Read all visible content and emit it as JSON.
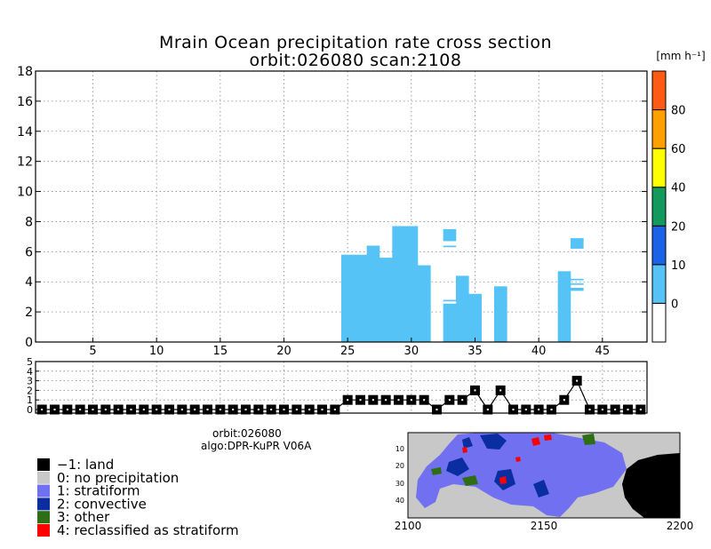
{
  "title": {
    "line1": "Mrain Ocean precipitation rate cross section",
    "line2": "orbit:026080     scan:2108"
  },
  "colorbar": {
    "unit_label": "[mm h⁻¹]",
    "segments": [
      {
        "color": "#ffffff",
        "from": -10,
        "to": 0
      },
      {
        "color": "#56c3f7",
        "from": 0,
        "to": 10
      },
      {
        "color": "#1a62e8",
        "from": 10,
        "to": 20
      },
      {
        "color": "#129a5c",
        "from": 20,
        "to": 40
      },
      {
        "color": "#ffff00",
        "from": 40,
        "to": 60
      },
      {
        "color": "#ffa000",
        "from": 60,
        "to": 80
      },
      {
        "color": "#ff5a14",
        "from": 80,
        "to": 100
      }
    ],
    "labels": [
      "0",
      "10",
      "20",
      "40",
      "60",
      "80"
    ]
  },
  "chart_data": [
    {
      "type": "bar",
      "name": "precipitation-cross-section",
      "title": "Mrain Ocean precipitation rate cross section",
      "xlabel": "",
      "ylabel": "",
      "xlim": [
        0.5,
        48.5
      ],
      "ylim": [
        0,
        18
      ],
      "xticks": [
        5,
        10,
        15,
        20,
        25,
        30,
        35,
        40,
        45
      ],
      "yticks": [
        0,
        2,
        4,
        6,
        8,
        10,
        12,
        14,
        16,
        18
      ],
      "grid": true,
      "bar_color": "#56c3f7",
      "columns": [
        {
          "x": 25,
          "top": 5.8
        },
        {
          "x": 26,
          "top": 5.8
        },
        {
          "x": 27,
          "top": 6.4
        },
        {
          "x": 28,
          "top": 5.6
        },
        {
          "x": 29,
          "top": 7.7
        },
        {
          "x": 30,
          "top": 7.7
        },
        {
          "x": 31,
          "top": 5.1
        },
        {
          "x": 33,
          "top": 2.8
        },
        {
          "x": 34,
          "top": 4.4
        },
        {
          "x": 35,
          "top": 3.2
        },
        {
          "x": 37,
          "top": 3.7
        },
        {
          "x": 42,
          "top": 4.7
        }
      ],
      "floating": [
        {
          "x": 33,
          "bottom": 6.7,
          "top": 7.5
        },
        {
          "x": 33,
          "bottom": 6.3,
          "top": 6.4
        },
        {
          "x": 43,
          "bottom": 6.2,
          "top": 6.9
        },
        {
          "x": 43,
          "bottom": 4.1,
          "top": 4.2
        },
        {
          "x": 43,
          "bottom": 3.8,
          "top": 3.9
        },
        {
          "x": 43,
          "bottom": 3.4,
          "top": 3.6
        }
      ],
      "gaps": [
        {
          "x": 33,
          "bottom": 2.55,
          "top": 2.7
        }
      ]
    },
    {
      "type": "line",
      "name": "rain-type-strip",
      "xlim": [
        0.5,
        48.5
      ],
      "ylim": [
        0,
        5
      ],
      "yticks": [
        0,
        1,
        2,
        3,
        4,
        5
      ],
      "grid": true,
      "x": [
        1,
        2,
        3,
        4,
        5,
        6,
        7,
        8,
        9,
        10,
        11,
        12,
        13,
        14,
        15,
        16,
        17,
        18,
        19,
        20,
        21,
        22,
        23,
        24,
        25,
        26,
        27,
        28,
        29,
        30,
        31,
        32,
        33,
        34,
        35,
        36,
        37,
        38,
        39,
        40,
        41,
        42,
        43,
        44,
        45,
        46,
        47,
        48
      ],
      "y": [
        0,
        0,
        0,
        0,
        0,
        0,
        0,
        0,
        0,
        0,
        0,
        0,
        0,
        0,
        0,
        0,
        0,
        0,
        0,
        0,
        0,
        0,
        0,
        0,
        1,
        1,
        1,
        1,
        1,
        1,
        1,
        0,
        1,
        1,
        2,
        0,
        2,
        0,
        0,
        0,
        0,
        1,
        3,
        0,
        0,
        0,
        0,
        0
      ]
    }
  ],
  "info": {
    "orbit": "orbit:026080",
    "algo": "algo:DPR-KuPR V06A"
  },
  "legend": [
    {
      "color": "#000000",
      "label": "−1: land"
    },
    {
      "color": "#c8c8c8",
      "label": "0: no precipitation"
    },
    {
      "color": "#7070f0",
      "label": "1: stratiform"
    },
    {
      "color": "#0a2ea0",
      "label": "2: convective"
    },
    {
      "color": "#2e6e14",
      "label": "3: other"
    },
    {
      "color": "#ff0000",
      "label": "4: reclassified as stratiform"
    }
  ],
  "map": {
    "yticks": [
      "10",
      "20",
      "30",
      "40"
    ],
    "xticks": [
      "2100",
      "2150",
      "2200"
    ],
    "colors": {
      "background": "#c8c8c8",
      "stratiform": "#7070f0",
      "convective": "#0a2ea0",
      "other": "#2e6e14",
      "reclassified": "#ff0000",
      "land": "#000000"
    }
  }
}
